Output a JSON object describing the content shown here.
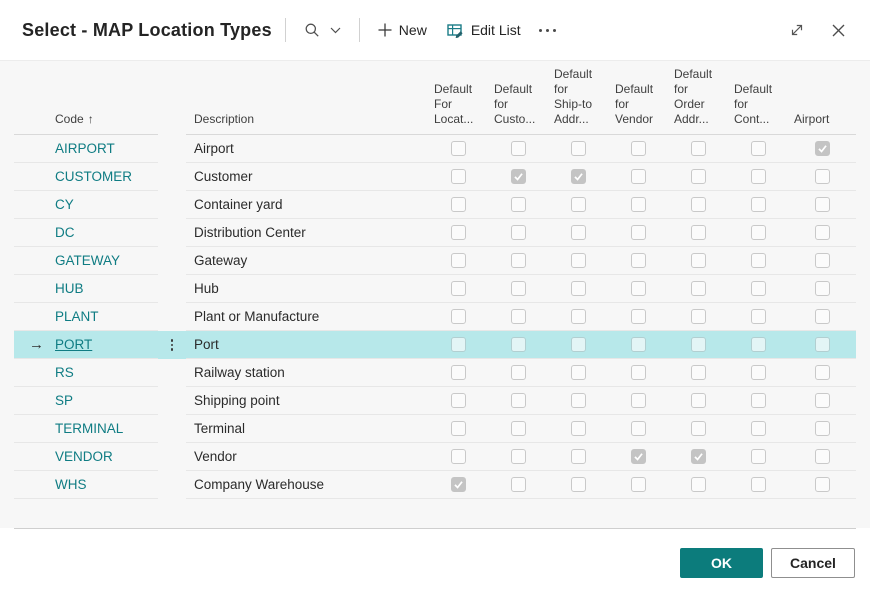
{
  "window": {
    "title": "Select - MAP Location Types"
  },
  "toolbar": {
    "new_label": "New",
    "edit_list_label": "Edit List",
    "icons": {
      "search": "magnifier",
      "search_chevron": "chevron-down",
      "new": "plus",
      "edit_list": "table-with-pencil",
      "more": "horizontal-ellipsis",
      "expand": "diagonal-double-arrow",
      "close": "x"
    }
  },
  "table": {
    "code_header": "Code",
    "sort_arrow": "↑",
    "description_header": "Description",
    "selected_row_arrow": "→",
    "row_options_icon": "vertical-ellipsis",
    "checkbox_columns": [
      {
        "key": "default-for-location",
        "label": "Default\nFor\nLocat..."
      },
      {
        "key": "default-for-customer",
        "label": "Default\nfor\nCusto..."
      },
      {
        "key": "default-for-ship-to-address",
        "label": "Default\nfor\nShip-to\nAddr..."
      },
      {
        "key": "default-for-vendor",
        "label": "Default\nfor\nVendor"
      },
      {
        "key": "default-for-order-address",
        "label": "Default\nfor\nOrder\nAddr..."
      },
      {
        "key": "default-for-contact",
        "label": "Default\nfor\nCont..."
      },
      {
        "key": "airport",
        "label": "Airport"
      }
    ],
    "rows": [
      {
        "code": "AIRPORT",
        "description": "Airport",
        "selected": false,
        "checks": [
          false,
          false,
          false,
          false,
          false,
          false,
          true
        ]
      },
      {
        "code": "CUSTOMER",
        "description": "Customer",
        "selected": false,
        "checks": [
          false,
          true,
          true,
          false,
          false,
          false,
          false
        ]
      },
      {
        "code": "CY",
        "description": "Container yard",
        "selected": false,
        "checks": [
          false,
          false,
          false,
          false,
          false,
          false,
          false
        ]
      },
      {
        "code": "DC",
        "description": "Distribution Center",
        "selected": false,
        "checks": [
          false,
          false,
          false,
          false,
          false,
          false,
          false
        ]
      },
      {
        "code": "GATEWAY",
        "description": "Gateway",
        "selected": false,
        "checks": [
          false,
          false,
          false,
          false,
          false,
          false,
          false
        ]
      },
      {
        "code": "HUB",
        "description": "Hub",
        "selected": false,
        "checks": [
          false,
          false,
          false,
          false,
          false,
          false,
          false
        ]
      },
      {
        "code": "PLANT",
        "description": "Plant or Manufacture",
        "selected": false,
        "checks": [
          false,
          false,
          false,
          false,
          false,
          false,
          false
        ]
      },
      {
        "code": "PORT",
        "description": "Port",
        "selected": true,
        "checks": [
          false,
          false,
          false,
          false,
          false,
          false,
          false
        ]
      },
      {
        "code": "RS",
        "description": "Railway station",
        "selected": false,
        "checks": [
          false,
          false,
          false,
          false,
          false,
          false,
          false
        ]
      },
      {
        "code": "SP",
        "description": "Shipping point",
        "selected": false,
        "checks": [
          false,
          false,
          false,
          false,
          false,
          false,
          false
        ]
      },
      {
        "code": "TERMINAL",
        "description": "Terminal",
        "selected": false,
        "checks": [
          false,
          false,
          false,
          false,
          false,
          false,
          false
        ]
      },
      {
        "code": "VENDOR",
        "description": "Vendor",
        "selected": false,
        "checks": [
          false,
          false,
          false,
          true,
          true,
          false,
          false
        ]
      },
      {
        "code": "WHS",
        "description": "Company Warehouse",
        "selected": false,
        "checks": [
          true,
          false,
          false,
          false,
          false,
          false,
          false
        ]
      }
    ]
  },
  "footer": {
    "ok_label": "OK",
    "cancel_label": "Cancel"
  },
  "colors": {
    "accent_link": "#0f7c83",
    "ok_button": "#0c7c7c",
    "selected_row": "#b7e8ea",
    "checked_box": "#c4c4c4"
  }
}
